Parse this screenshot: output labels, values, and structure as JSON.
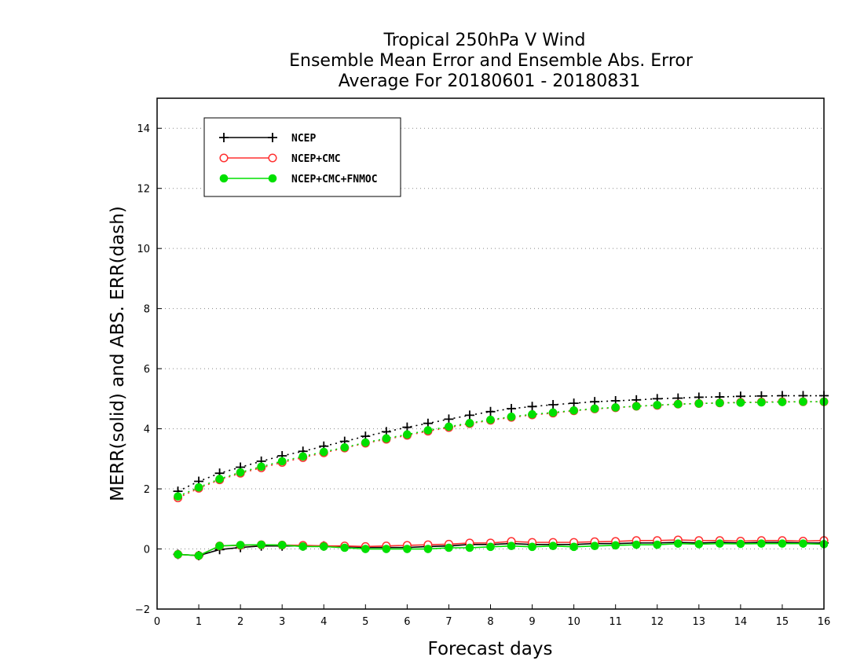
{
  "chart_data": {
    "type": "line",
    "title_lines": [
      "Tropical 250hPa V Wind",
      "Ensemble Mean Error and Ensemble Abs. Error",
      "Average For 20180601 - 20180831"
    ],
    "xlabel": "Forecast days",
    "ylabel": "MERR(solid) and ABS. ERR(dash)",
    "xlim": [
      0,
      16
    ],
    "ylim": [
      -2,
      15
    ],
    "xticks": [
      "0",
      "1",
      "2",
      "3",
      "4",
      "5",
      "6",
      "7",
      "8",
      "9",
      "10",
      "11",
      "12",
      "13",
      "14",
      "15",
      "16"
    ],
    "yticks": [
      "−2",
      "0",
      "2",
      "4",
      "6",
      "8",
      "10",
      "12",
      "14"
    ],
    "grid": "horizontal dotted",
    "legend_position": "top-left",
    "x": [
      0.5,
      1,
      1.5,
      2,
      2.5,
      3,
      3.5,
      4,
      4.5,
      5,
      5.5,
      6,
      6.5,
      7,
      7.5,
      8,
      8.5,
      9,
      9.5,
      10,
      10.5,
      11,
      11.5,
      12,
      12.5,
      13,
      13.5,
      14,
      14.5,
      15,
      15.5,
      16
    ],
    "series": [
      {
        "name": "NCEP",
        "color": "#000000",
        "marker": "plus",
        "abs_err": [
          1.92,
          2.25,
          2.52,
          2.72,
          2.92,
          3.1,
          3.25,
          3.42,
          3.58,
          3.75,
          3.9,
          4.05,
          4.18,
          4.32,
          4.45,
          4.57,
          4.67,
          4.74,
          4.8,
          4.85,
          4.9,
          4.93,
          4.96,
          5.0,
          5.02,
          5.05,
          5.06,
          5.08,
          5.09,
          5.1,
          5.1,
          5.1
        ],
        "mean_err": [
          -0.18,
          -0.22,
          -0.02,
          0.05,
          0.1,
          0.1,
          0.1,
          0.1,
          0.08,
          0.05,
          0.05,
          0.05,
          0.08,
          0.1,
          0.15,
          0.15,
          0.18,
          0.15,
          0.15,
          0.15,
          0.18,
          0.18,
          0.2,
          0.2,
          0.22,
          0.2,
          0.22,
          0.2,
          0.22,
          0.22,
          0.2,
          0.2
        ]
      },
      {
        "name": "NCEP+CMC",
        "color": "#ff3030",
        "marker": "open-circle",
        "abs_err": [
          1.7,
          2.02,
          2.3,
          2.52,
          2.7,
          2.88,
          3.04,
          3.2,
          3.36,
          3.52,
          3.65,
          3.78,
          3.92,
          4.04,
          4.17,
          4.28,
          4.38,
          4.46,
          4.52,
          4.6,
          4.66,
          4.7,
          4.75,
          4.78,
          4.82,
          4.84,
          4.86,
          4.88,
          4.89,
          4.9,
          4.9,
          4.9
        ],
        "mean_err": [
          -0.18,
          -0.22,
          0.1,
          0.12,
          0.14,
          0.13,
          0.12,
          0.1,
          0.1,
          0.08,
          0.1,
          0.12,
          0.14,
          0.16,
          0.2,
          0.2,
          0.25,
          0.22,
          0.22,
          0.22,
          0.24,
          0.25,
          0.28,
          0.28,
          0.3,
          0.28,
          0.28,
          0.26,
          0.28,
          0.28,
          0.26,
          0.28
        ]
      },
      {
        "name": "NCEP+CMC+FNMOC",
        "color": "#00e000",
        "marker": "filled-circle",
        "abs_err": [
          1.75,
          2.05,
          2.33,
          2.55,
          2.74,
          2.92,
          3.08,
          3.23,
          3.38,
          3.54,
          3.68,
          3.81,
          3.95,
          4.07,
          4.19,
          4.3,
          4.4,
          4.48,
          4.54,
          4.61,
          4.67,
          4.71,
          4.75,
          4.79,
          4.82,
          4.84,
          4.86,
          4.87,
          4.88,
          4.89,
          4.9,
          4.9
        ],
        "mean_err": [
          -0.18,
          -0.22,
          0.1,
          0.13,
          0.14,
          0.13,
          0.08,
          0.08,
          0.04,
          0.0,
          0.0,
          0.0,
          0.0,
          0.04,
          0.04,
          0.07,
          0.1,
          0.07,
          0.1,
          0.07,
          0.1,
          0.12,
          0.14,
          0.14,
          0.18,
          0.16,
          0.18,
          0.17,
          0.18,
          0.18,
          0.18,
          0.16
        ]
      }
    ]
  }
}
